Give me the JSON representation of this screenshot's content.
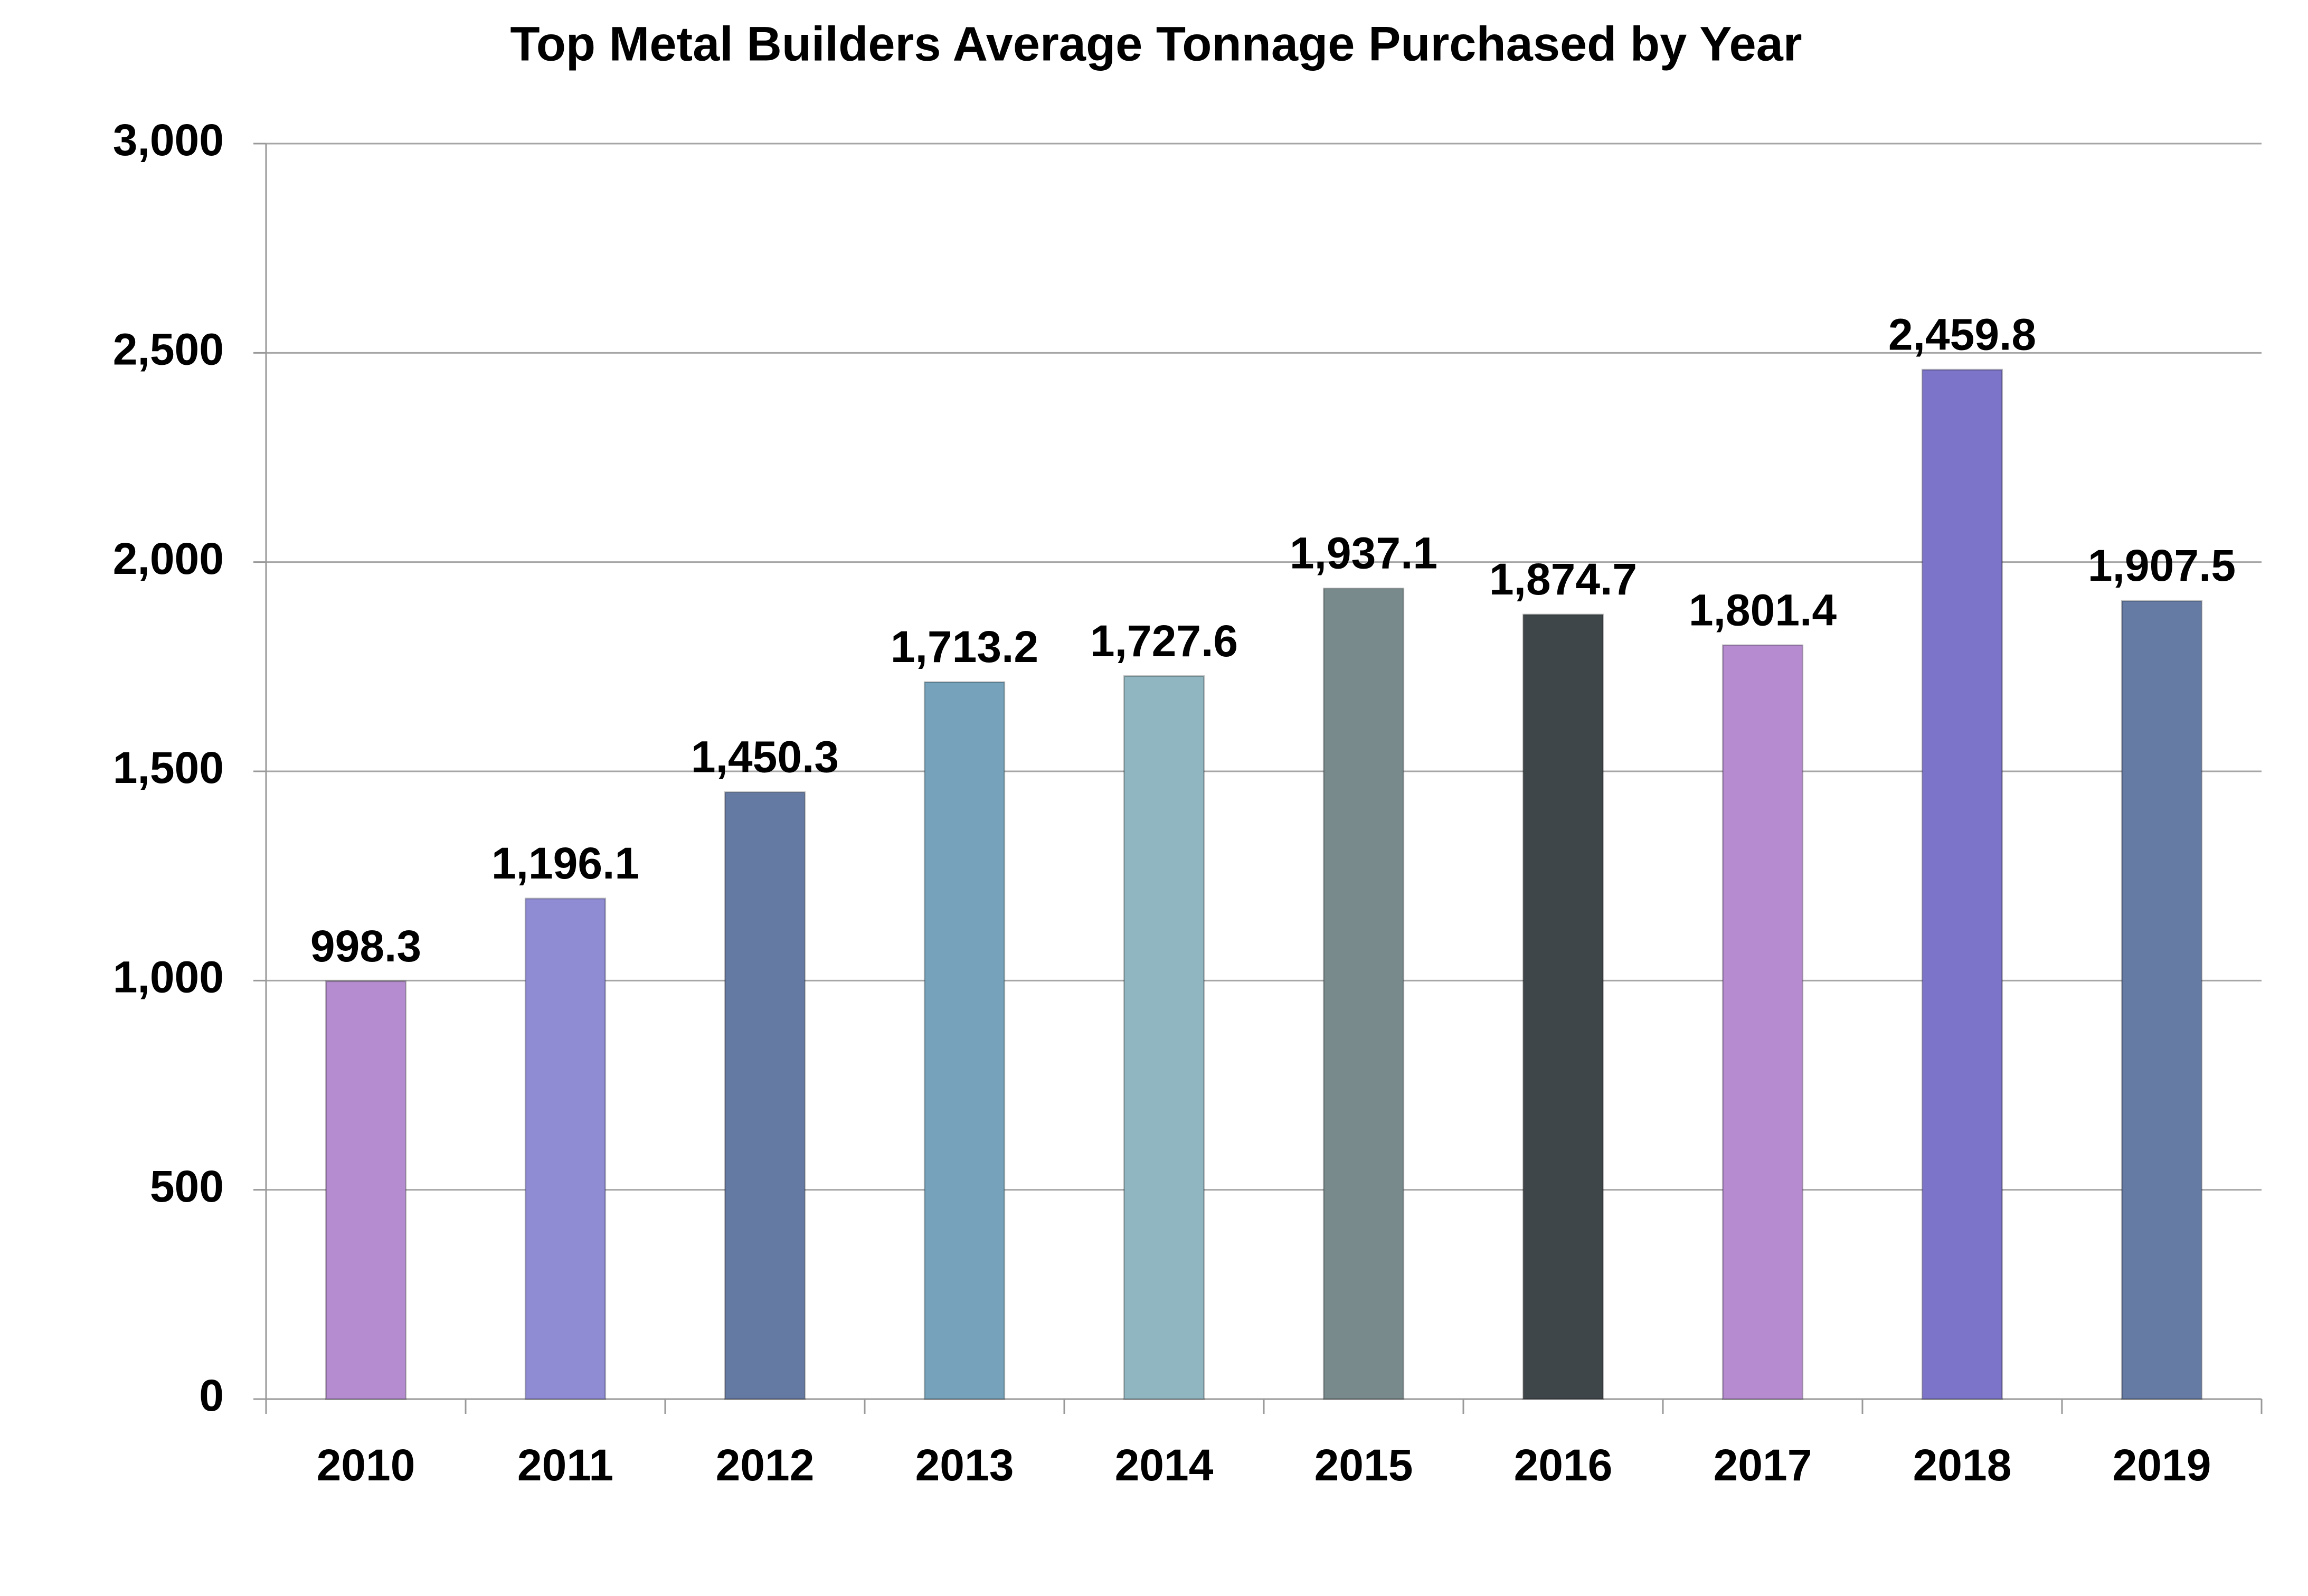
{
  "chart_data": {
    "type": "bar",
    "title": "Top Metal Builders Average Tonnage Purchased by Year",
    "categories": [
      "2010",
      "2011",
      "2012",
      "2013",
      "2014",
      "2015",
      "2016",
      "2017",
      "2018",
      "2019"
    ],
    "values": [
      998.3,
      1196.1,
      1450.3,
      1713.2,
      1727.6,
      1937.1,
      1874.7,
      1801.4,
      2459.8,
      1907.5
    ],
    "value_labels": [
      "998.3",
      "1,196.1",
      "1,450.3",
      "1,713.2",
      "1,727.6",
      "1,937.1",
      "1,874.7",
      "1,801.4",
      "2,459.8",
      "1,907.5"
    ],
    "colors": [
      "#b48ccf",
      "#8f8cd4",
      "#657aa3",
      "#76a3bb",
      "#8fb6c1",
      "#798a8c",
      "#3e4649",
      "#b68bcf",
      "#7c74c8",
      "#657ba3"
    ],
    "ylim": [
      0,
      3000
    ],
    "yticks": [
      0,
      500,
      {
        "value": 1000,
        "label": "1,000"
      },
      {
        "value": 1500,
        "label": "1,500"
      },
      {
        "value": 2000,
        "label": "2,000"
      },
      {
        "value": 2500,
        "label": "2,500"
      },
      {
        "value": 3000,
        "label": "3,000"
      }
    ],
    "grid": true
  }
}
